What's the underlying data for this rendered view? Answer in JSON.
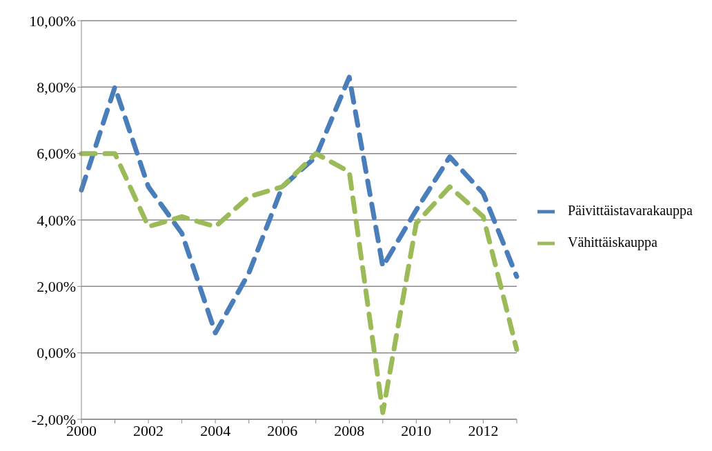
{
  "chart_data": {
    "type": "line",
    "categories": [
      "2000",
      null,
      "2002",
      null,
      "2004",
      null,
      "2006",
      null,
      "2008",
      null,
      "2010",
      null,
      "2012",
      null
    ],
    "series": [
      {
        "name": "Päivittäistavarakauppa",
        "color": "#4a7ebb",
        "values": [
          4.9,
          8.0,
          5.0,
          3.6,
          0.6,
          2.4,
          5.0,
          5.9,
          8.3,
          2.6,
          4.3,
          5.9,
          4.8,
          2.3
        ]
      },
      {
        "name": "Vähittäiskauppa",
        "color": "#9bbb59",
        "values": [
          6.0,
          6.0,
          3.8,
          4.1,
          3.8,
          4.7,
          5.0,
          6.0,
          5.45,
          -1.8,
          3.9,
          5.0,
          4.1,
          0.1
        ]
      }
    ],
    "ylim": [
      -2,
      10
    ],
    "yticks": [
      {
        "value": -2,
        "label": "-2,00%"
      },
      {
        "value": 0,
        "label": "0,00%"
      },
      {
        "value": 2,
        "label": "2,00%"
      },
      {
        "value": 4,
        "label": "4,00%"
      },
      {
        "value": 6,
        "label": "6,00%"
      },
      {
        "value": 8,
        "label": "8,00%"
      },
      {
        "value": 10,
        "label": "10,00%"
      }
    ],
    "grid": "y",
    "legend": "right",
    "marker": "none",
    "line_style": "dashed"
  }
}
